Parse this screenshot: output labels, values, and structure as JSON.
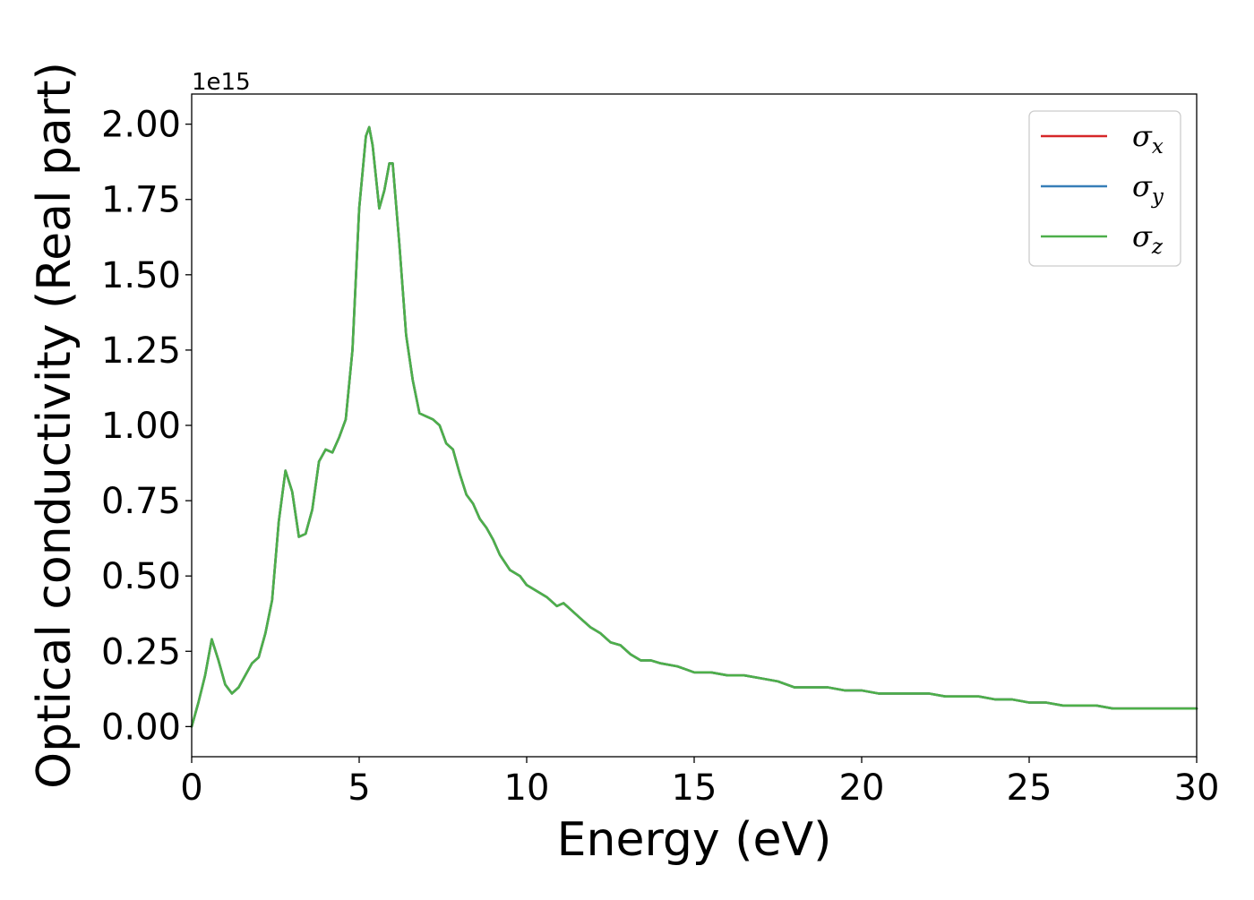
{
  "chart_data": {
    "type": "line",
    "xlabel": "Energy (eV)",
    "ylabel": "Optical conductivity (Real part)",
    "y_offset_text": "1e15",
    "xlim": [
      0,
      30
    ],
    "ylim": [
      -0.1,
      2.1
    ],
    "y_scale_multiplier": 1000000000000000.0,
    "x_ticks": [
      0,
      5,
      10,
      15,
      20,
      25,
      30
    ],
    "x_tick_labels": [
      "0",
      "5",
      "10",
      "15",
      "20",
      "25",
      "30"
    ],
    "y_ticks": [
      0,
      0.25,
      0.5,
      0.75,
      1.0,
      1.25,
      1.5,
      1.75,
      2.0
    ],
    "y_tick_labels": [
      "0.00",
      "0.25",
      "0.50",
      "0.75",
      "1.00",
      "1.25",
      "1.50",
      "1.75",
      "2.00"
    ],
    "grid": false,
    "legend_position": "top-right",
    "x": [
      0,
      0.2,
      0.4,
      0.6,
      0.8,
      1.0,
      1.2,
      1.4,
      1.6,
      1.8,
      2.0,
      2.2,
      2.4,
      2.6,
      2.8,
      3.0,
      3.2,
      3.4,
      3.6,
      3.8,
      4.0,
      4.2,
      4.4,
      4.6,
      4.8,
      5.0,
      5.2,
      5.3,
      5.4,
      5.6,
      5.75,
      5.9,
      6.0,
      6.2,
      6.4,
      6.6,
      6.8,
      7.0,
      7.2,
      7.4,
      7.6,
      7.8,
      8.0,
      8.2,
      8.4,
      8.6,
      8.8,
      9.0,
      9.2,
      9.5,
      9.8,
      10.0,
      10.3,
      10.6,
      10.9,
      11.1,
      11.3,
      11.6,
      11.9,
      12.2,
      12.5,
      12.8,
      13.1,
      13.4,
      13.7,
      14.0,
      14.5,
      15.0,
      15.5,
      16.0,
      16.5,
      17.0,
      17.5,
      18.0,
      18.5,
      19.0,
      19.5,
      20.0,
      20.5,
      21.0,
      21.5,
      22.0,
      22.5,
      23.0,
      23.5,
      24.0,
      24.5,
      25.0,
      25.5,
      26.0,
      26.5,
      27.0,
      27.5,
      28.0,
      28.5,
      29.0,
      29.5,
      30.0
    ],
    "series": [
      {
        "name": "σ_x",
        "color": "#d62728",
        "values": [
          0.0,
          0.08,
          0.17,
          0.29,
          0.22,
          0.14,
          0.11,
          0.13,
          0.17,
          0.21,
          0.23,
          0.31,
          0.42,
          0.68,
          0.85,
          0.78,
          0.63,
          0.64,
          0.72,
          0.88,
          0.92,
          0.91,
          0.96,
          1.02,
          1.25,
          1.72,
          1.96,
          1.99,
          1.93,
          1.72,
          1.78,
          1.87,
          1.87,
          1.6,
          1.3,
          1.15,
          1.04,
          1.03,
          1.02,
          1.0,
          0.94,
          0.92,
          0.84,
          0.77,
          0.74,
          0.69,
          0.66,
          0.62,
          0.57,
          0.52,
          0.5,
          0.47,
          0.45,
          0.43,
          0.4,
          0.41,
          0.39,
          0.36,
          0.33,
          0.31,
          0.28,
          0.27,
          0.24,
          0.22,
          0.22,
          0.21,
          0.2,
          0.18,
          0.18,
          0.17,
          0.17,
          0.16,
          0.15,
          0.13,
          0.13,
          0.13,
          0.12,
          0.12,
          0.11,
          0.11,
          0.11,
          0.11,
          0.1,
          0.1,
          0.1,
          0.09,
          0.09,
          0.08,
          0.08,
          0.07,
          0.07,
          0.07,
          0.06,
          0.06,
          0.06,
          0.06,
          0.06,
          0.06
        ]
      },
      {
        "name": "σ_y",
        "color": "#377eb8",
        "values": [
          0.0,
          0.08,
          0.17,
          0.29,
          0.22,
          0.14,
          0.11,
          0.13,
          0.17,
          0.21,
          0.23,
          0.31,
          0.42,
          0.68,
          0.85,
          0.78,
          0.63,
          0.64,
          0.72,
          0.88,
          0.92,
          0.91,
          0.96,
          1.02,
          1.25,
          1.72,
          1.96,
          1.99,
          1.93,
          1.72,
          1.78,
          1.87,
          1.87,
          1.6,
          1.3,
          1.15,
          1.04,
          1.03,
          1.02,
          1.0,
          0.94,
          0.92,
          0.84,
          0.77,
          0.74,
          0.69,
          0.66,
          0.62,
          0.57,
          0.52,
          0.5,
          0.47,
          0.45,
          0.43,
          0.4,
          0.41,
          0.39,
          0.36,
          0.33,
          0.31,
          0.28,
          0.27,
          0.24,
          0.22,
          0.22,
          0.21,
          0.2,
          0.18,
          0.18,
          0.17,
          0.17,
          0.16,
          0.15,
          0.13,
          0.13,
          0.13,
          0.12,
          0.12,
          0.11,
          0.11,
          0.11,
          0.11,
          0.1,
          0.1,
          0.1,
          0.09,
          0.09,
          0.08,
          0.08,
          0.07,
          0.07,
          0.07,
          0.06,
          0.06,
          0.06,
          0.06,
          0.06,
          0.06
        ]
      },
      {
        "name": "σ_z",
        "color": "#4daf4a",
        "values": [
          0.0,
          0.08,
          0.17,
          0.29,
          0.22,
          0.14,
          0.11,
          0.13,
          0.17,
          0.21,
          0.23,
          0.31,
          0.42,
          0.68,
          0.85,
          0.78,
          0.63,
          0.64,
          0.72,
          0.88,
          0.92,
          0.91,
          0.96,
          1.02,
          1.25,
          1.72,
          1.96,
          1.99,
          1.93,
          1.72,
          1.78,
          1.87,
          1.87,
          1.6,
          1.3,
          1.15,
          1.04,
          1.03,
          1.02,
          1.0,
          0.94,
          0.92,
          0.84,
          0.77,
          0.74,
          0.69,
          0.66,
          0.62,
          0.57,
          0.52,
          0.5,
          0.47,
          0.45,
          0.43,
          0.4,
          0.41,
          0.39,
          0.36,
          0.33,
          0.31,
          0.28,
          0.27,
          0.24,
          0.22,
          0.22,
          0.21,
          0.2,
          0.18,
          0.18,
          0.17,
          0.17,
          0.16,
          0.15,
          0.13,
          0.13,
          0.13,
          0.12,
          0.12,
          0.11,
          0.11,
          0.11,
          0.11,
          0.1,
          0.1,
          0.1,
          0.09,
          0.09,
          0.08,
          0.08,
          0.07,
          0.07,
          0.07,
          0.06,
          0.06,
          0.06,
          0.06,
          0.06,
          0.06
        ]
      }
    ],
    "legend": [
      {
        "symbol": "σ",
        "sub": "x",
        "color": "#d62728"
      },
      {
        "symbol": "σ",
        "sub": "y",
        "color": "#377eb8"
      },
      {
        "symbol": "σ",
        "sub": "z",
        "color": "#4daf4a"
      }
    ]
  }
}
